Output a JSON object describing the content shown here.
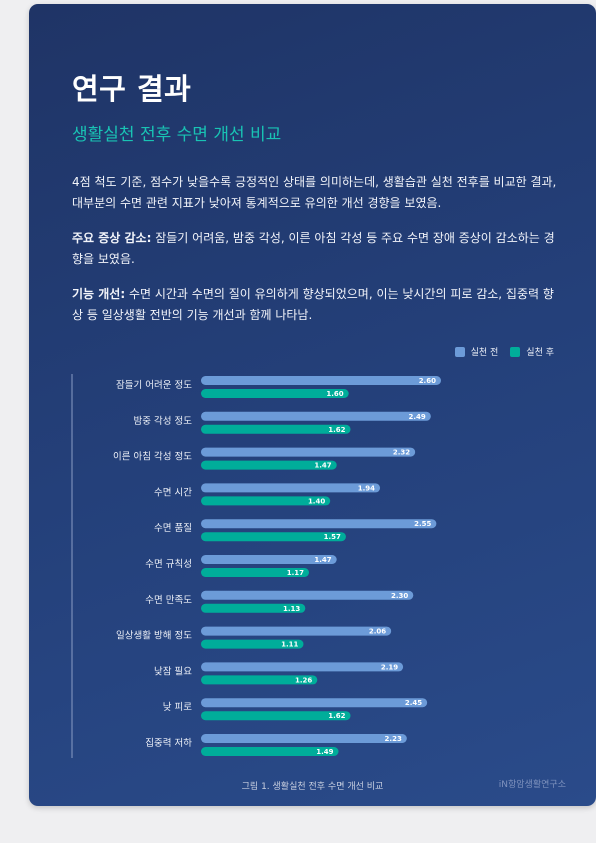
{
  "page": {
    "title": "연구 결과",
    "subtitle": "생활실천 전후 수면 개선 비교",
    "p1": "4점 척도 기준, 점수가 낮을수록 긍정적인 상태를 의미하는데, 생활습관 실천 전후를 비교한 결과, 대부분의 수면 관련 지표가 낮아져 통계적으로 유의한 개선 경향을 보였음.",
    "p2_label": "주요 증상 감소:",
    "p2_text": " 잠들기 어려움, 밤중 각성, 이른 아침 각성 등 주요 수면 장애 증상이 감소하는 경향을 보였음.",
    "p3_label": "기능 개선:",
    "p3_text": " 수면 시간과 수면의 질이 유의하게 향상되었으며, 이는 낮시간의 피로 감소, 집중력 향상 등 일상생활 전반의 기능 개선과 함께 나타남.",
    "caption": "그림 1. 생활실천 전후 수면 개선 비교",
    "brand": "iN항암생활연구소"
  },
  "colors": {
    "before": "#6c9bd8",
    "after": "#00ad9a"
  },
  "chart_data": {
    "type": "bar",
    "orientation": "horizontal",
    "categories": [
      "잠들기 어려운 정도",
      "밤중 각성 정도",
      "이른 아침 각성 정도",
      "수면 시간",
      "수면 품질",
      "수면 규칙성",
      "수면 만족도",
      "일상생활 방해 정도",
      "낮잠 필요",
      "낮 피로",
      "집중력 저하"
    ],
    "series": [
      {
        "name": "실천 전",
        "values": [
          2.6,
          2.49,
          2.32,
          1.94,
          2.55,
          1.47,
          2.3,
          2.06,
          2.19,
          2.45,
          2.23
        ]
      },
      {
        "name": "실천 후",
        "values": [
          1.6,
          1.62,
          1.47,
          1.4,
          1.57,
          1.17,
          1.13,
          1.11,
          1.26,
          1.62,
          1.49
        ]
      }
    ],
    "value_labels": true,
    "legend_position": "top-right",
    "grid": false
  }
}
